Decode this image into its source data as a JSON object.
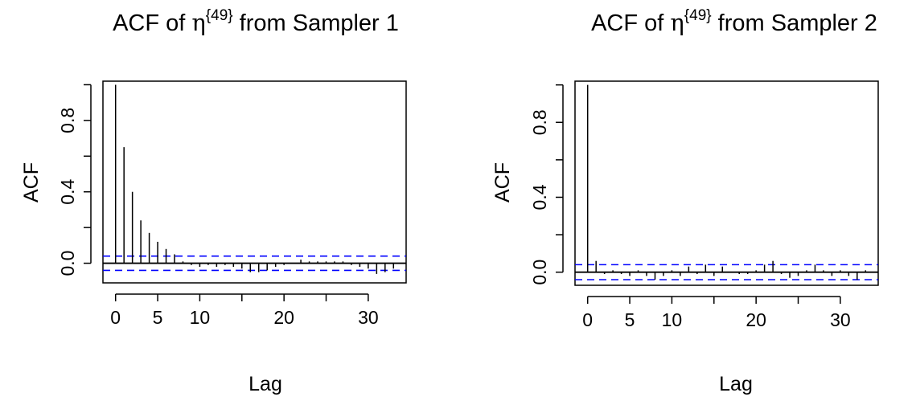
{
  "chart_data": [
    {
      "type": "bar",
      "title_prefix": "ACF of ",
      "title_symbol": "η",
      "title_superscript": "{49}",
      "title_suffix": " from Sampler 1",
      "xlabel": "Lag",
      "ylabel": "ACF",
      "xlim": [
        -1.5,
        34.5
      ],
      "ylim": [
        -0.11,
        1.02
      ],
      "xticks": [
        0,
        5,
        10,
        20,
        30
      ],
      "xtick_labels": [
        "0",
        "5",
        "10",
        "20",
        "30"
      ],
      "xtick_marks": [
        0,
        5,
        10,
        15,
        20,
        25,
        30
      ],
      "yticks": [
        0.0,
        0.4,
        0.8
      ],
      "ytick_labels": [
        "0.0",
        "0.4",
        "0.8"
      ],
      "ytick_marks": [
        0.0,
        0.2,
        0.4,
        0.6,
        0.8,
        1.0
      ],
      "conf_limit": 0.04,
      "grid": false,
      "lags": [
        0,
        1,
        2,
        3,
        4,
        5,
        6,
        7,
        8,
        9,
        10,
        11,
        12,
        13,
        14,
        15,
        16,
        17,
        18,
        19,
        20,
        21,
        22,
        23,
        24,
        25,
        26,
        27,
        28,
        29,
        30,
        31,
        32,
        33
      ],
      "values": [
        1.0,
        0.65,
        0.4,
        0.24,
        0.17,
        0.12,
        0.08,
        0.05,
        0.01,
        -0.01,
        -0.02,
        -0.01,
        -0.02,
        -0.01,
        -0.02,
        -0.03,
        -0.05,
        -0.05,
        -0.04,
        -0.02,
        -0.01,
        0.0,
        0.02,
        0.01,
        0.01,
        0.01,
        0.01,
        0.01,
        -0.01,
        -0.02,
        -0.03,
        -0.06,
        -0.05,
        -0.03
      ]
    },
    {
      "type": "bar",
      "title_prefix": "ACF of ",
      "title_symbol": "η",
      "title_superscript": "{49}",
      "title_suffix": " from Sampler 2",
      "xlabel": "Lag",
      "ylabel": "ACF",
      "xlim": [
        -1.5,
        34.5
      ],
      "ylim": [
        -0.07,
        1.02
      ],
      "xticks": [
        0,
        5,
        10,
        20,
        30
      ],
      "xtick_labels": [
        "0",
        "5",
        "10",
        "20",
        "30"
      ],
      "xtick_marks": [
        0,
        5,
        10,
        15,
        20,
        25,
        30
      ],
      "yticks": [
        0.0,
        0.4,
        0.8
      ],
      "ytick_labels": [
        "0.0",
        "0.4",
        "0.8"
      ],
      "ytick_marks": [
        0.0,
        0.2,
        0.4,
        0.6,
        0.8,
        1.0
      ],
      "conf_limit": 0.04,
      "grid": false,
      "lags": [
        0,
        1,
        2,
        3,
        4,
        5,
        6,
        7,
        8,
        9,
        10,
        11,
        12,
        13,
        14,
        15,
        16,
        17,
        18,
        19,
        20,
        21,
        22,
        23,
        24,
        25,
        26,
        27,
        28,
        29,
        30,
        31,
        32,
        33
      ],
      "values": [
        1.0,
        0.06,
        -0.01,
        0.01,
        -0.01,
        -0.02,
        0.01,
        -0.02,
        -0.04,
        -0.02,
        0.01,
        -0.02,
        0.03,
        -0.01,
        0.04,
        -0.02,
        0.03,
        0.0,
        -0.01,
        -0.01,
        0.01,
        0.04,
        0.06,
        -0.01,
        -0.03,
        -0.02,
        0.01,
        0.04,
        0.01,
        -0.02,
        0.01,
        -0.02,
        -0.04,
        0.01
      ]
    }
  ],
  "colors": {
    "bars": "#000000",
    "axes": "#000000",
    "conf_lines": "#0000ff",
    "zero_line": "#000000",
    "background": "#ffffff"
  }
}
